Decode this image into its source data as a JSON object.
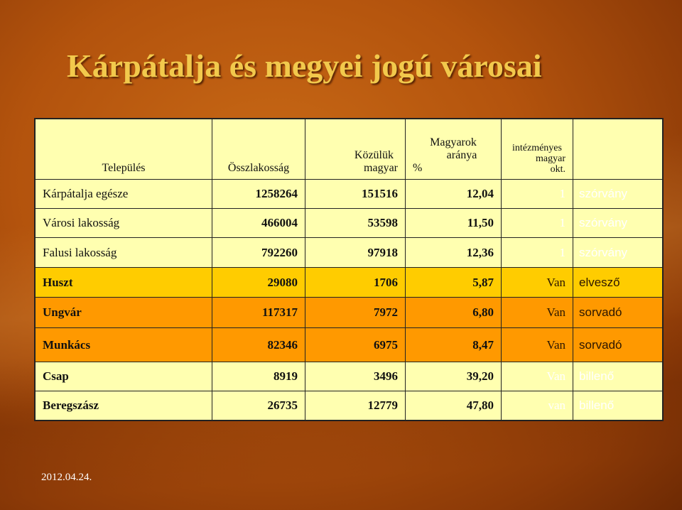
{
  "title": "Kárpátalja és megyei jogú városai",
  "footer_date": "2012.04.24.",
  "headers": {
    "settlement": "Település",
    "population": "Összlakosság",
    "hungarian_1": "Közülük",
    "hungarian_2": "magyar",
    "ratio_1": "Magyarok",
    "ratio_2": "aránya",
    "ratio_pct": "%",
    "inst_1": "intézményes",
    "inst_2": "magyar",
    "inst_3": "okt.",
    "status": ""
  },
  "rows": [
    {
      "name": "Kárpátalja egésze",
      "population": "1258264",
      "hungarian": "151516",
      "ratio": "12,04",
      "institutional": "1",
      "status": "szórvány"
    },
    {
      "name": "Városi lakosság",
      "population": "466004",
      "hungarian": "53598",
      "ratio": "11,50",
      "institutional": "1",
      "status": "szórvány"
    },
    {
      "name": "Falusi lakosság",
      "population": "792260",
      "hungarian": "97918",
      "ratio": "12,36",
      "institutional": "1",
      "status": "szórvány"
    },
    {
      "name": "Huszt",
      "population": "29080",
      "hungarian": "1706",
      "ratio": "5,87",
      "institutional": "Van",
      "status": "elvesző"
    },
    {
      "name": "Ungvár",
      "population": "117317",
      "hungarian": "7972",
      "ratio": "6,80",
      "institutional": "Van",
      "status": "sorvadó"
    },
    {
      "name": "Munkács",
      "population": "82346",
      "hungarian": "6975",
      "ratio": "8,47",
      "institutional": "Van",
      "status": "sorvadó"
    },
    {
      "name": "Csap",
      "population": "8919",
      "hungarian": "3496",
      "ratio": "39,20",
      "institutional": "Van",
      "status": "billenő"
    },
    {
      "name": "Beregszász",
      "population": "26735",
      "hungarian": "12779",
      "ratio": "47,80",
      "institutional": "van",
      "status": "billenő"
    }
  ],
  "colors": {
    "pale_row": "#ffffb0",
    "gold_row": "#ffcc00",
    "orange_row": "#ff9900",
    "title": "#f2c94c"
  }
}
